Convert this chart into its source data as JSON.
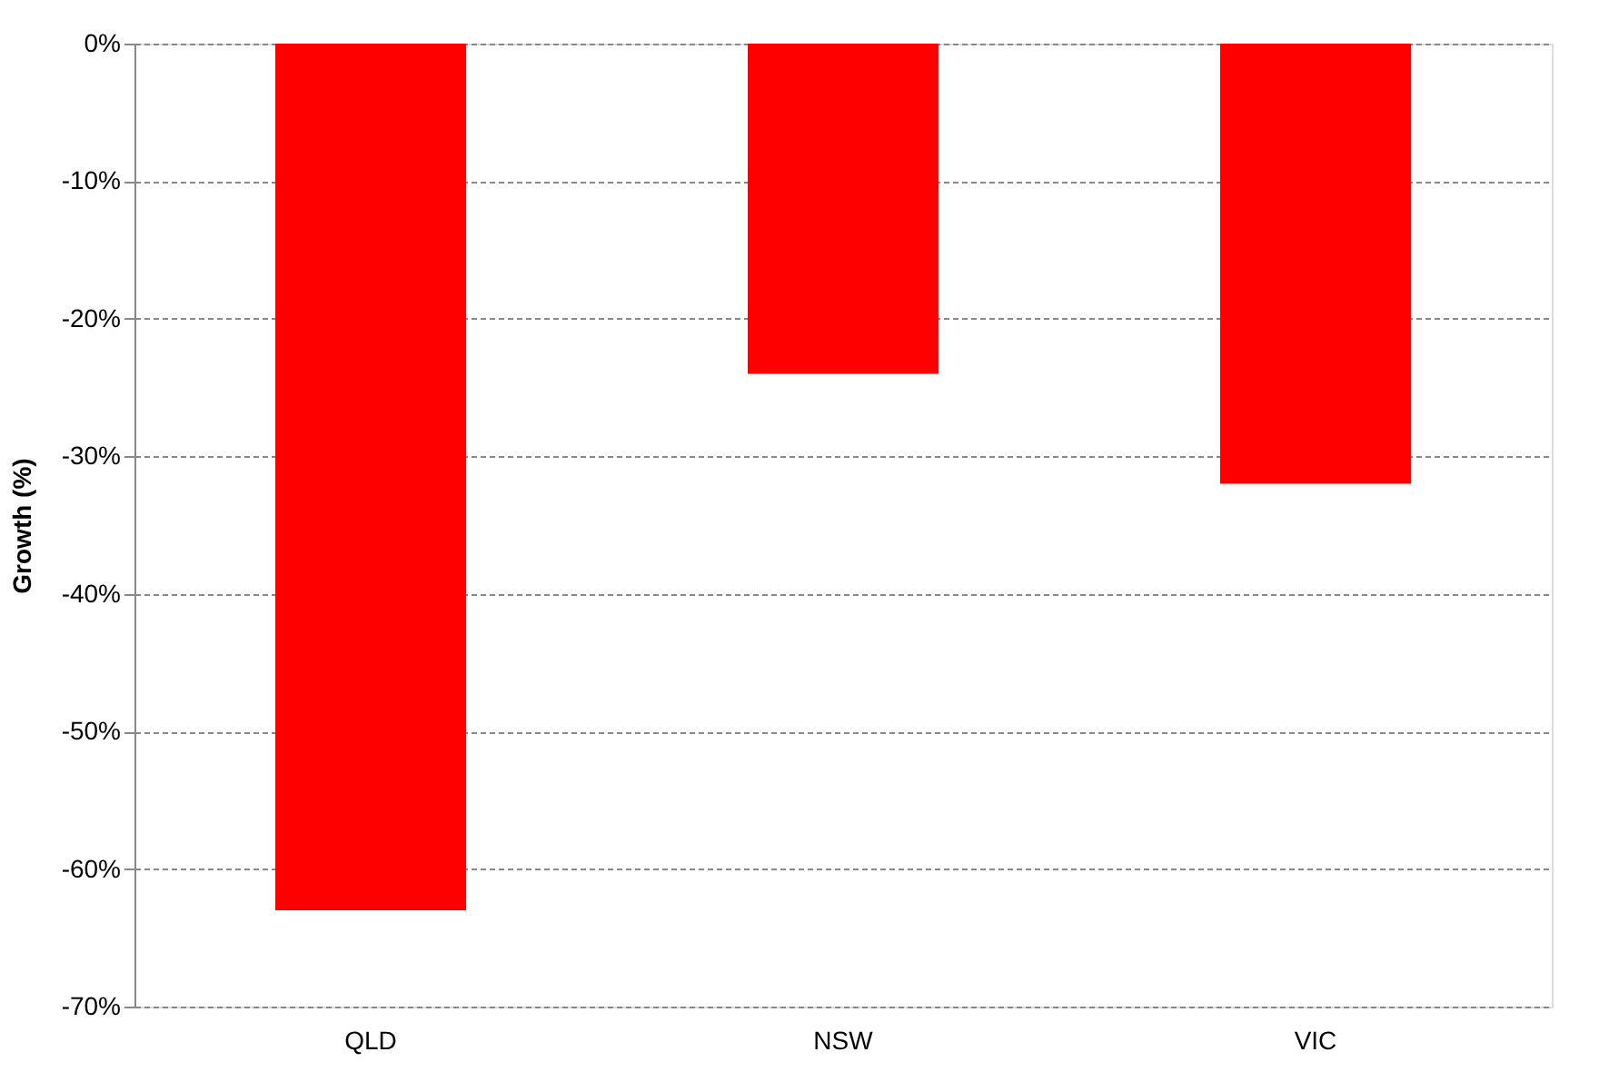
{
  "chart_data": {
    "type": "bar",
    "ylabel": "Growth (%)",
    "categories": [
      "QLD",
      "NSW",
      "VIC"
    ],
    "values": [
      -63,
      -24,
      -32
    ],
    "color": "#ff0000",
    "ylim": [
      -70,
      0
    ],
    "yticks": [
      {
        "value": 0,
        "label": "0%"
      },
      {
        "value": -10,
        "label": "-10%"
      },
      {
        "value": -20,
        "label": "-20%"
      },
      {
        "value": -30,
        "label": "-30%"
      },
      {
        "value": -40,
        "label": "-40%"
      },
      {
        "value": -50,
        "label": "-50%"
      },
      {
        "value": -60,
        "label": "-60%"
      },
      {
        "value": -70,
        "label": "-70%"
      }
    ],
    "grid": "y"
  }
}
